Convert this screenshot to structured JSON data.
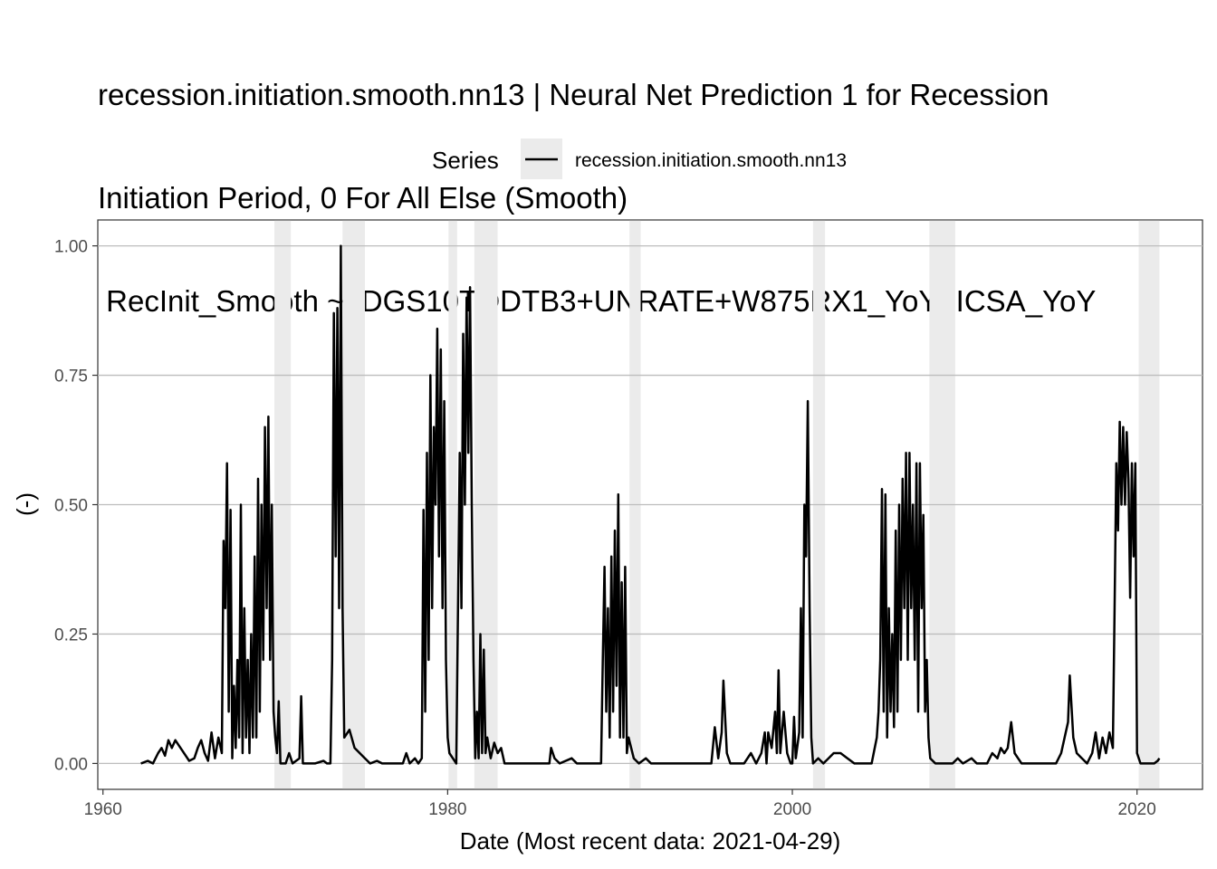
{
  "chart_data": {
    "type": "line",
    "title_lines": [
      "recession.initiation.smooth.nn13 | Neural Net Prediction 1 for Recession",
      "Initiation Period, 0 For All Else (Smooth)",
      " RecInit_Smooth ~  DGS10TODTB3+UNRATE+W875RX1_YoY+ICSA_YoY"
    ],
    "xlabel": "Date (Most recent data: 2021-04-29)",
    "ylabel": "(-)",
    "xlim": [
      1959.7,
      2023.8
    ],
    "ylim": [
      -0.05,
      1.05
    ],
    "x_ticks": [
      1960,
      1980,
      2000,
      2020
    ],
    "y_ticks": [
      0.0,
      0.25,
      0.5,
      0.75,
      1.0
    ],
    "y_tick_labels": [
      "0.00",
      "0.25",
      "0.50",
      "0.75",
      "1.00"
    ],
    "grid": true,
    "legend": {
      "title": "Series",
      "position": "top",
      "entries": [
        "recession.initiation.smooth.nn13"
      ]
    },
    "recessions": [
      [
        1969.95,
        1970.9
      ],
      [
        1973.9,
        1975.2
      ],
      [
        1980.05,
        1980.55
      ],
      [
        1981.55,
        1982.9
      ],
      [
        1990.55,
        1991.2
      ],
      [
        2001.2,
        2001.9
      ],
      [
        2007.95,
        2009.45
      ],
      [
        2020.1,
        2021.3
      ]
    ],
    "series": [
      {
        "name": "recession.initiation.smooth.nn13",
        "color": "#000000",
        "points": [
          [
            1962.2,
            0.0
          ],
          [
            1962.6,
            0.005
          ],
          [
            1962.9,
            0.0
          ],
          [
            1963.2,
            0.02
          ],
          [
            1963.4,
            0.03
          ],
          [
            1963.6,
            0.015
          ],
          [
            1963.8,
            0.045
          ],
          [
            1964.0,
            0.03
          ],
          [
            1964.2,
            0.045
          ],
          [
            1964.5,
            0.03
          ],
          [
            1964.8,
            0.015
          ],
          [
            1965.0,
            0.005
          ],
          [
            1965.3,
            0.01
          ],
          [
            1965.5,
            0.03
          ],
          [
            1965.7,
            0.045
          ],
          [
            1965.9,
            0.02
          ],
          [
            1966.1,
            0.005
          ],
          [
            1966.3,
            0.06
          ],
          [
            1966.5,
            0.01
          ],
          [
            1966.7,
            0.05
          ],
          [
            1966.9,
            0.02
          ],
          [
            1967.0,
            0.43
          ],
          [
            1967.1,
            0.3
          ],
          [
            1967.2,
            0.58
          ],
          [
            1967.3,
            0.1
          ],
          [
            1967.4,
            0.49
          ],
          [
            1967.5,
            0.01
          ],
          [
            1967.6,
            0.15
          ],
          [
            1967.7,
            0.03
          ],
          [
            1967.8,
            0.2
          ],
          [
            1967.9,
            0.05
          ],
          [
            1968.0,
            0.5
          ],
          [
            1968.1,
            0.02
          ],
          [
            1968.2,
            0.3
          ],
          [
            1968.3,
            0.05
          ],
          [
            1968.4,
            0.2
          ],
          [
            1968.5,
            0.02
          ],
          [
            1968.6,
            0.25
          ],
          [
            1968.7,
            0.05
          ],
          [
            1968.8,
            0.4
          ],
          [
            1968.9,
            0.05
          ],
          [
            1969.0,
            0.55
          ],
          [
            1969.1,
            0.1
          ],
          [
            1969.2,
            0.5
          ],
          [
            1969.3,
            0.2
          ],
          [
            1969.4,
            0.65
          ],
          [
            1969.5,
            0.3
          ],
          [
            1969.6,
            0.67
          ],
          [
            1969.7,
            0.2
          ],
          [
            1969.8,
            0.5
          ],
          [
            1969.9,
            0.1
          ],
          [
            1970.0,
            0.05
          ],
          [
            1970.1,
            0.02
          ],
          [
            1970.2,
            0.12
          ],
          [
            1970.3,
            0.0
          ],
          [
            1970.6,
            0.0
          ],
          [
            1970.8,
            0.02
          ],
          [
            1971.0,
            0.0
          ],
          [
            1971.4,
            0.01
          ],
          [
            1971.5,
            0.13
          ],
          [
            1971.6,
            0.0
          ],
          [
            1972.3,
            0.0
          ],
          [
            1972.8,
            0.005
          ],
          [
            1973.0,
            0.0
          ],
          [
            1973.2,
            0.0
          ],
          [
            1973.3,
            0.2
          ],
          [
            1973.4,
            0.87
          ],
          [
            1973.5,
            0.4
          ],
          [
            1973.6,
            0.88
          ],
          [
            1973.7,
            0.3
          ],
          [
            1973.8,
            1.0
          ],
          [
            1973.9,
            0.3
          ],
          [
            1974.0,
            0.05
          ],
          [
            1974.3,
            0.065
          ],
          [
            1974.6,
            0.03
          ],
          [
            1974.9,
            0.02
          ],
          [
            1975.2,
            0.01
          ],
          [
            1975.5,
            0.0
          ],
          [
            1975.9,
            0.005
          ],
          [
            1976.2,
            0.0
          ],
          [
            1977.4,
            0.0
          ],
          [
            1977.6,
            0.02
          ],
          [
            1977.8,
            0.0
          ],
          [
            1978.1,
            0.01
          ],
          [
            1978.3,
            0.0
          ],
          [
            1978.5,
            0.01
          ],
          [
            1978.6,
            0.49
          ],
          [
            1978.7,
            0.1
          ],
          [
            1978.8,
            0.6
          ],
          [
            1978.9,
            0.2
          ],
          [
            1979.0,
            0.75
          ],
          [
            1979.1,
            0.3
          ],
          [
            1979.2,
            0.65
          ],
          [
            1979.3,
            0.5
          ],
          [
            1979.4,
            0.84
          ],
          [
            1979.5,
            0.4
          ],
          [
            1979.6,
            0.8
          ],
          [
            1979.7,
            0.3
          ],
          [
            1979.8,
            0.7
          ],
          [
            1979.9,
            0.2
          ],
          [
            1980.0,
            0.05
          ],
          [
            1980.1,
            0.02
          ],
          [
            1980.3,
            0.01
          ],
          [
            1980.5,
            0.0
          ],
          [
            1980.7,
            0.6
          ],
          [
            1980.8,
            0.3
          ],
          [
            1980.9,
            0.83
          ],
          [
            1981.0,
            0.5
          ],
          [
            1981.1,
            0.9
          ],
          [
            1981.2,
            0.6
          ],
          [
            1981.3,
            0.92
          ],
          [
            1981.4,
            0.5
          ],
          [
            1981.5,
            0.2
          ],
          [
            1981.6,
            0.01
          ],
          [
            1981.7,
            0.1
          ],
          [
            1981.8,
            0.01
          ],
          [
            1981.9,
            0.25
          ],
          [
            1982.0,
            0.02
          ],
          [
            1982.1,
            0.22
          ],
          [
            1982.2,
            0.02
          ],
          [
            1982.3,
            0.05
          ],
          [
            1982.5,
            0.01
          ],
          [
            1982.7,
            0.04
          ],
          [
            1982.9,
            0.02
          ],
          [
            1983.1,
            0.03
          ],
          [
            1983.3,
            0.0
          ],
          [
            1983.6,
            0.0
          ],
          [
            1985.9,
            0.0
          ],
          [
            1986.0,
            0.03
          ],
          [
            1986.2,
            0.01
          ],
          [
            1986.5,
            0.0
          ],
          [
            1987.2,
            0.01
          ],
          [
            1987.5,
            0.0
          ],
          [
            1988.9,
            0.0
          ],
          [
            1989.0,
            0.2
          ],
          [
            1989.1,
            0.38
          ],
          [
            1989.2,
            0.1
          ],
          [
            1989.3,
            0.3
          ],
          [
            1989.4,
            0.05
          ],
          [
            1989.5,
            0.4
          ],
          [
            1989.6,
            0.1
          ],
          [
            1989.7,
            0.45
          ],
          [
            1989.8,
            0.15
          ],
          [
            1989.9,
            0.52
          ],
          [
            1990.0,
            0.05
          ],
          [
            1990.1,
            0.35
          ],
          [
            1990.2,
            0.05
          ],
          [
            1990.3,
            0.38
          ],
          [
            1990.4,
            0.02
          ],
          [
            1990.5,
            0.05
          ],
          [
            1990.8,
            0.01
          ],
          [
            1991.1,
            0.0
          ],
          [
            1991.5,
            0.01
          ],
          [
            1991.8,
            0.0
          ],
          [
            1995.3,
            0.0
          ],
          [
            1995.5,
            0.07
          ],
          [
            1995.7,
            0.01
          ],
          [
            1995.9,
            0.06
          ],
          [
            1996.0,
            0.16
          ],
          [
            1996.2,
            0.02
          ],
          [
            1996.4,
            0.0
          ],
          [
            1997.2,
            0.0
          ],
          [
            1997.6,
            0.02
          ],
          [
            1997.9,
            0.0
          ],
          [
            1998.2,
            0.02
          ],
          [
            1998.4,
            0.06
          ],
          [
            1998.5,
            0.0
          ],
          [
            1998.6,
            0.06
          ],
          [
            1998.8,
            0.03
          ],
          [
            1999.0,
            0.1
          ],
          [
            1999.1,
            0.02
          ],
          [
            1999.2,
            0.18
          ],
          [
            1999.3,
            0.02
          ],
          [
            1999.5,
            0.1
          ],
          [
            1999.7,
            0.02
          ],
          [
            1999.9,
            0.0
          ],
          [
            2000.0,
            0.0
          ],
          [
            2000.1,
            0.09
          ],
          [
            2000.2,
            0.01
          ],
          [
            2000.4,
            0.06
          ],
          [
            2000.5,
            0.3
          ],
          [
            2000.6,
            0.05
          ],
          [
            2000.7,
            0.5
          ],
          [
            2000.8,
            0.4
          ],
          [
            2000.9,
            0.7
          ],
          [
            2001.0,
            0.3
          ],
          [
            2001.1,
            0.05
          ],
          [
            2001.2,
            0.0
          ],
          [
            2001.5,
            0.01
          ],
          [
            2001.8,
            0.0
          ],
          [
            2002.1,
            0.01
          ],
          [
            2002.4,
            0.02
          ],
          [
            2002.8,
            0.02
          ],
          [
            2003.2,
            0.01
          ],
          [
            2003.6,
            0.0
          ],
          [
            2004.6,
            0.0
          ],
          [
            2004.9,
            0.05
          ],
          [
            2005.0,
            0.1
          ],
          [
            2005.1,
            0.2
          ],
          [
            2005.2,
            0.53
          ],
          [
            2005.3,
            0.1
          ],
          [
            2005.4,
            0.52
          ],
          [
            2005.5,
            0.05
          ],
          [
            2005.6,
            0.3
          ],
          [
            2005.7,
            0.1
          ],
          [
            2005.8,
            0.25
          ],
          [
            2005.9,
            0.07
          ],
          [
            2006.0,
            0.45
          ],
          [
            2006.1,
            0.1
          ],
          [
            2006.2,
            0.5
          ],
          [
            2006.3,
            0.2
          ],
          [
            2006.4,
            0.55
          ],
          [
            2006.5,
            0.3
          ],
          [
            2006.6,
            0.6
          ],
          [
            2006.7,
            0.2
          ],
          [
            2006.8,
            0.6
          ],
          [
            2006.9,
            0.3
          ],
          [
            2007.0,
            0.5
          ],
          [
            2007.1,
            0.2
          ],
          [
            2007.2,
            0.58
          ],
          [
            2007.3,
            0.1
          ],
          [
            2007.4,
            0.58
          ],
          [
            2007.5,
            0.3
          ],
          [
            2007.6,
            0.48
          ],
          [
            2007.7,
            0.1
          ],
          [
            2007.8,
            0.2
          ],
          [
            2007.9,
            0.05
          ],
          [
            2008.0,
            0.01
          ],
          [
            2008.3,
            0.0
          ],
          [
            2009.3,
            0.0
          ],
          [
            2009.6,
            0.01
          ],
          [
            2009.9,
            0.0
          ],
          [
            2010.4,
            0.01
          ],
          [
            2010.7,
            0.0
          ],
          [
            2011.3,
            0.0
          ],
          [
            2011.6,
            0.02
          ],
          [
            2011.9,
            0.01
          ],
          [
            2012.1,
            0.03
          ],
          [
            2012.3,
            0.02
          ],
          [
            2012.5,
            0.03
          ],
          [
            2012.7,
            0.08
          ],
          [
            2012.9,
            0.02
          ],
          [
            2013.1,
            0.01
          ],
          [
            2013.3,
            0.0
          ],
          [
            2015.3,
            0.0
          ],
          [
            2015.6,
            0.02
          ],
          [
            2015.8,
            0.05
          ],
          [
            2016.0,
            0.08
          ],
          [
            2016.1,
            0.17
          ],
          [
            2016.3,
            0.05
          ],
          [
            2016.5,
            0.02
          ],
          [
            2016.8,
            0.01
          ],
          [
            2017.1,
            0.0
          ],
          [
            2017.4,
            0.02
          ],
          [
            2017.6,
            0.06
          ],
          [
            2017.8,
            0.01
          ],
          [
            2018.0,
            0.05
          ],
          [
            2018.2,
            0.02
          ],
          [
            2018.4,
            0.06
          ],
          [
            2018.6,
            0.03
          ],
          [
            2018.7,
            0.3
          ],
          [
            2018.8,
            0.58
          ],
          [
            2018.9,
            0.45
          ],
          [
            2019.0,
            0.66
          ],
          [
            2019.1,
            0.5
          ],
          [
            2019.2,
            0.65
          ],
          [
            2019.3,
            0.5
          ],
          [
            2019.4,
            0.64
          ],
          [
            2019.5,
            0.55
          ],
          [
            2019.6,
            0.32
          ],
          [
            2019.7,
            0.58
          ],
          [
            2019.8,
            0.4
          ],
          [
            2019.9,
            0.58
          ],
          [
            2020.0,
            0.02
          ],
          [
            2020.2,
            0.0
          ],
          [
            2020.5,
            0.0
          ],
          [
            2020.8,
            0.0
          ],
          [
            2021.0,
            0.0
          ],
          [
            2021.2,
            0.005
          ],
          [
            2021.3,
            0.01
          ]
        ]
      }
    ]
  }
}
